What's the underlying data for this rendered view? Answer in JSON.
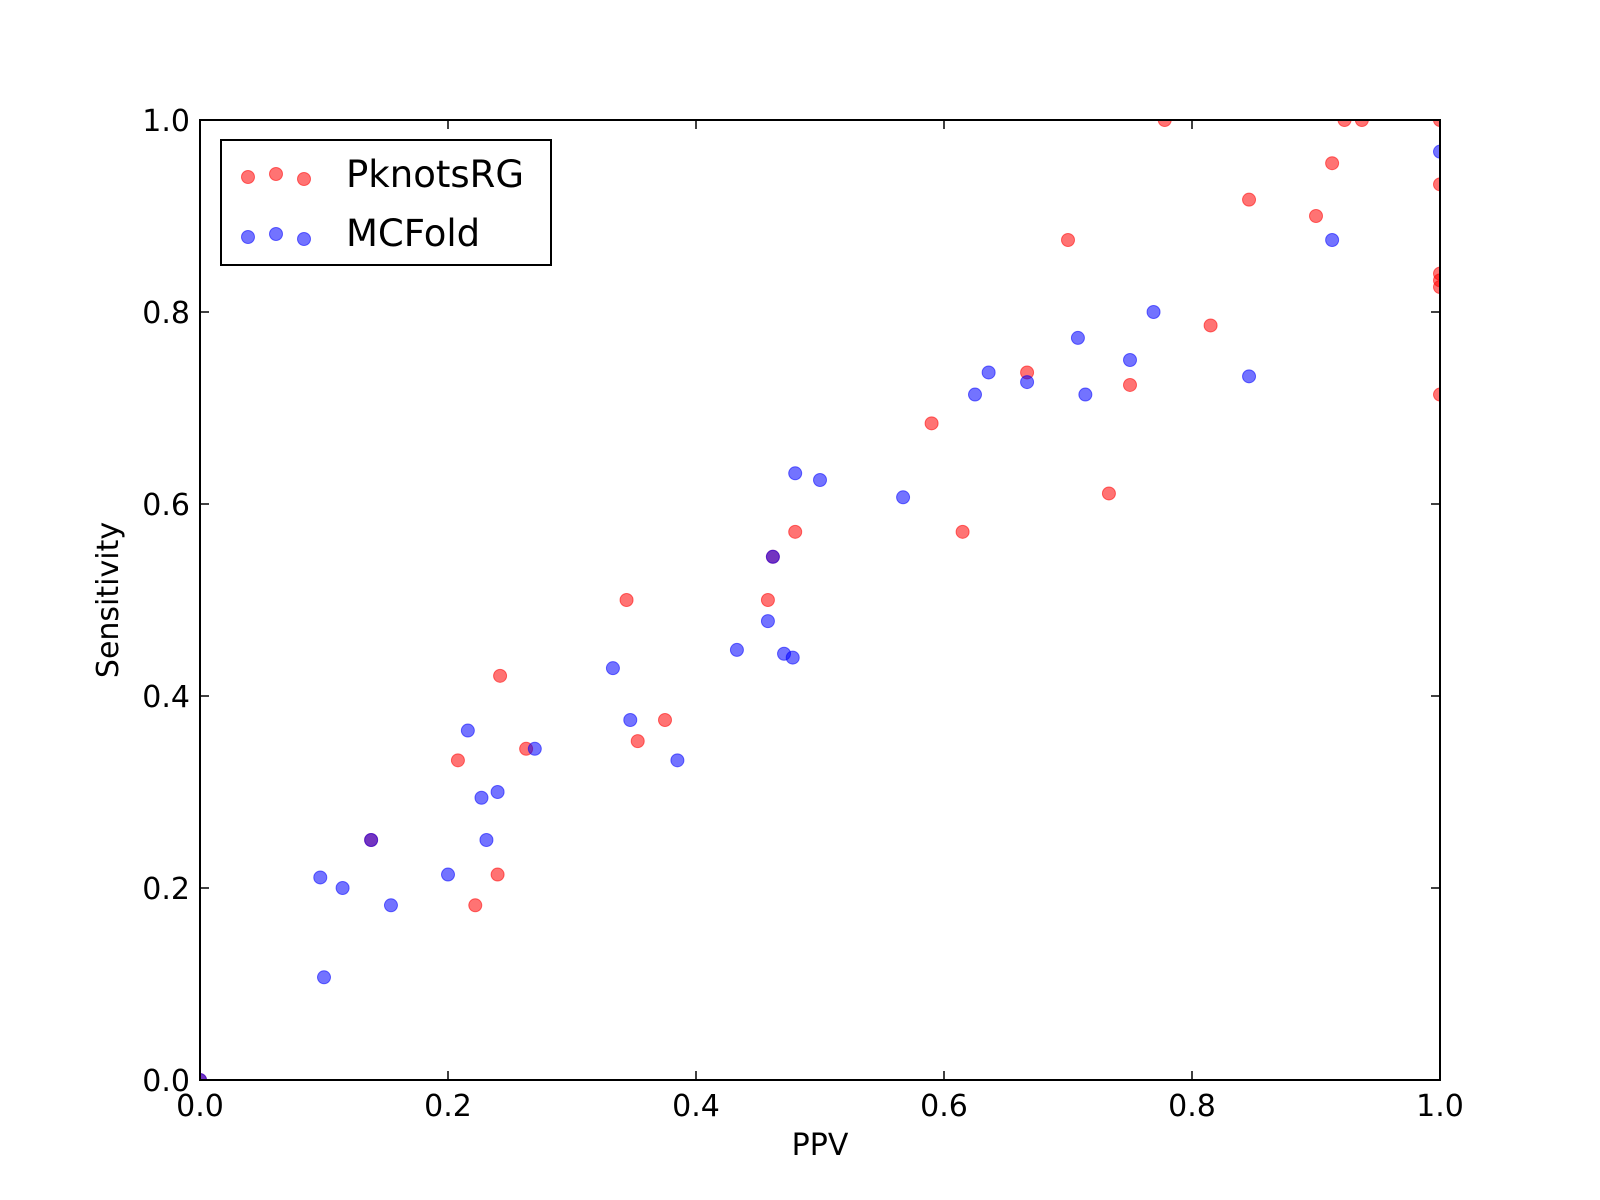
{
  "chart_data": {
    "type": "scatter",
    "title": "",
    "xlabel": "PPV",
    "ylabel": "Sensitivity",
    "xlim": [
      0.0,
      1.0
    ],
    "ylim": [
      0.0,
      1.0
    ],
    "xticks": [
      "0.0",
      "0.2",
      "0.4",
      "0.6",
      "0.8",
      "1.0"
    ],
    "yticks": [
      "0.0",
      "0.2",
      "0.4",
      "0.6",
      "0.8",
      "1.0"
    ],
    "grid": false,
    "legend_position": "top-left",
    "series": [
      {
        "name": "PknotsRG",
        "color": "#ff0000",
        "points": [
          [
            0.0,
            0.0
          ],
          [
            0.138,
            0.25
          ],
          [
            0.208,
            0.333
          ],
          [
            0.222,
            0.182
          ],
          [
            0.24,
            0.214
          ],
          [
            0.242,
            0.421
          ],
          [
            0.263,
            0.345
          ],
          [
            0.344,
            0.5
          ],
          [
            0.353,
            0.353
          ],
          [
            0.375,
            0.375
          ],
          [
            0.458,
            0.5
          ],
          [
            0.462,
            0.545
          ],
          [
            0.48,
            0.571
          ],
          [
            0.59,
            0.684
          ],
          [
            0.615,
            0.571
          ],
          [
            0.667,
            0.737
          ],
          [
            0.7,
            0.875
          ],
          [
            0.733,
            0.611
          ],
          [
            0.75,
            0.724
          ],
          [
            0.778,
            1.0
          ],
          [
            0.815,
            0.786
          ],
          [
            0.846,
            0.917
          ],
          [
            0.9,
            0.9
          ],
          [
            0.913,
            0.955
          ],
          [
            0.923,
            1.0
          ],
          [
            0.937,
            1.0
          ],
          [
            1.0,
            1.0
          ],
          [
            1.0,
            0.933
          ],
          [
            1.0,
            0.84
          ],
          [
            1.0,
            0.833
          ],
          [
            1.0,
            0.826
          ],
          [
            1.0,
            0.714
          ]
        ]
      },
      {
        "name": "MCFold",
        "color": "#0000ff",
        "points": [
          [
            0.0,
            0.0
          ],
          [
            0.097,
            0.211
          ],
          [
            0.1,
            0.107
          ],
          [
            0.115,
            0.2
          ],
          [
            0.138,
            0.25
          ],
          [
            0.154,
            0.182
          ],
          [
            0.2,
            0.214
          ],
          [
            0.216,
            0.364
          ],
          [
            0.227,
            0.294
          ],
          [
            0.231,
            0.25
          ],
          [
            0.24,
            0.3
          ],
          [
            0.27,
            0.345
          ],
          [
            0.333,
            0.429
          ],
          [
            0.347,
            0.375
          ],
          [
            0.385,
            0.333
          ],
          [
            0.433,
            0.448
          ],
          [
            0.458,
            0.478
          ],
          [
            0.462,
            0.545
          ],
          [
            0.471,
            0.444
          ],
          [
            0.478,
            0.44
          ],
          [
            0.48,
            0.632
          ],
          [
            0.5,
            0.625
          ],
          [
            0.567,
            0.607
          ],
          [
            0.625,
            0.714
          ],
          [
            0.636,
            0.737
          ],
          [
            0.667,
            0.727
          ],
          [
            0.708,
            0.773
          ],
          [
            0.714,
            0.714
          ],
          [
            0.75,
            0.75
          ],
          [
            0.769,
            0.8
          ],
          [
            0.846,
            0.733
          ],
          [
            0.913,
            0.875
          ],
          [
            1.0,
            0.967
          ]
        ]
      }
    ]
  }
}
